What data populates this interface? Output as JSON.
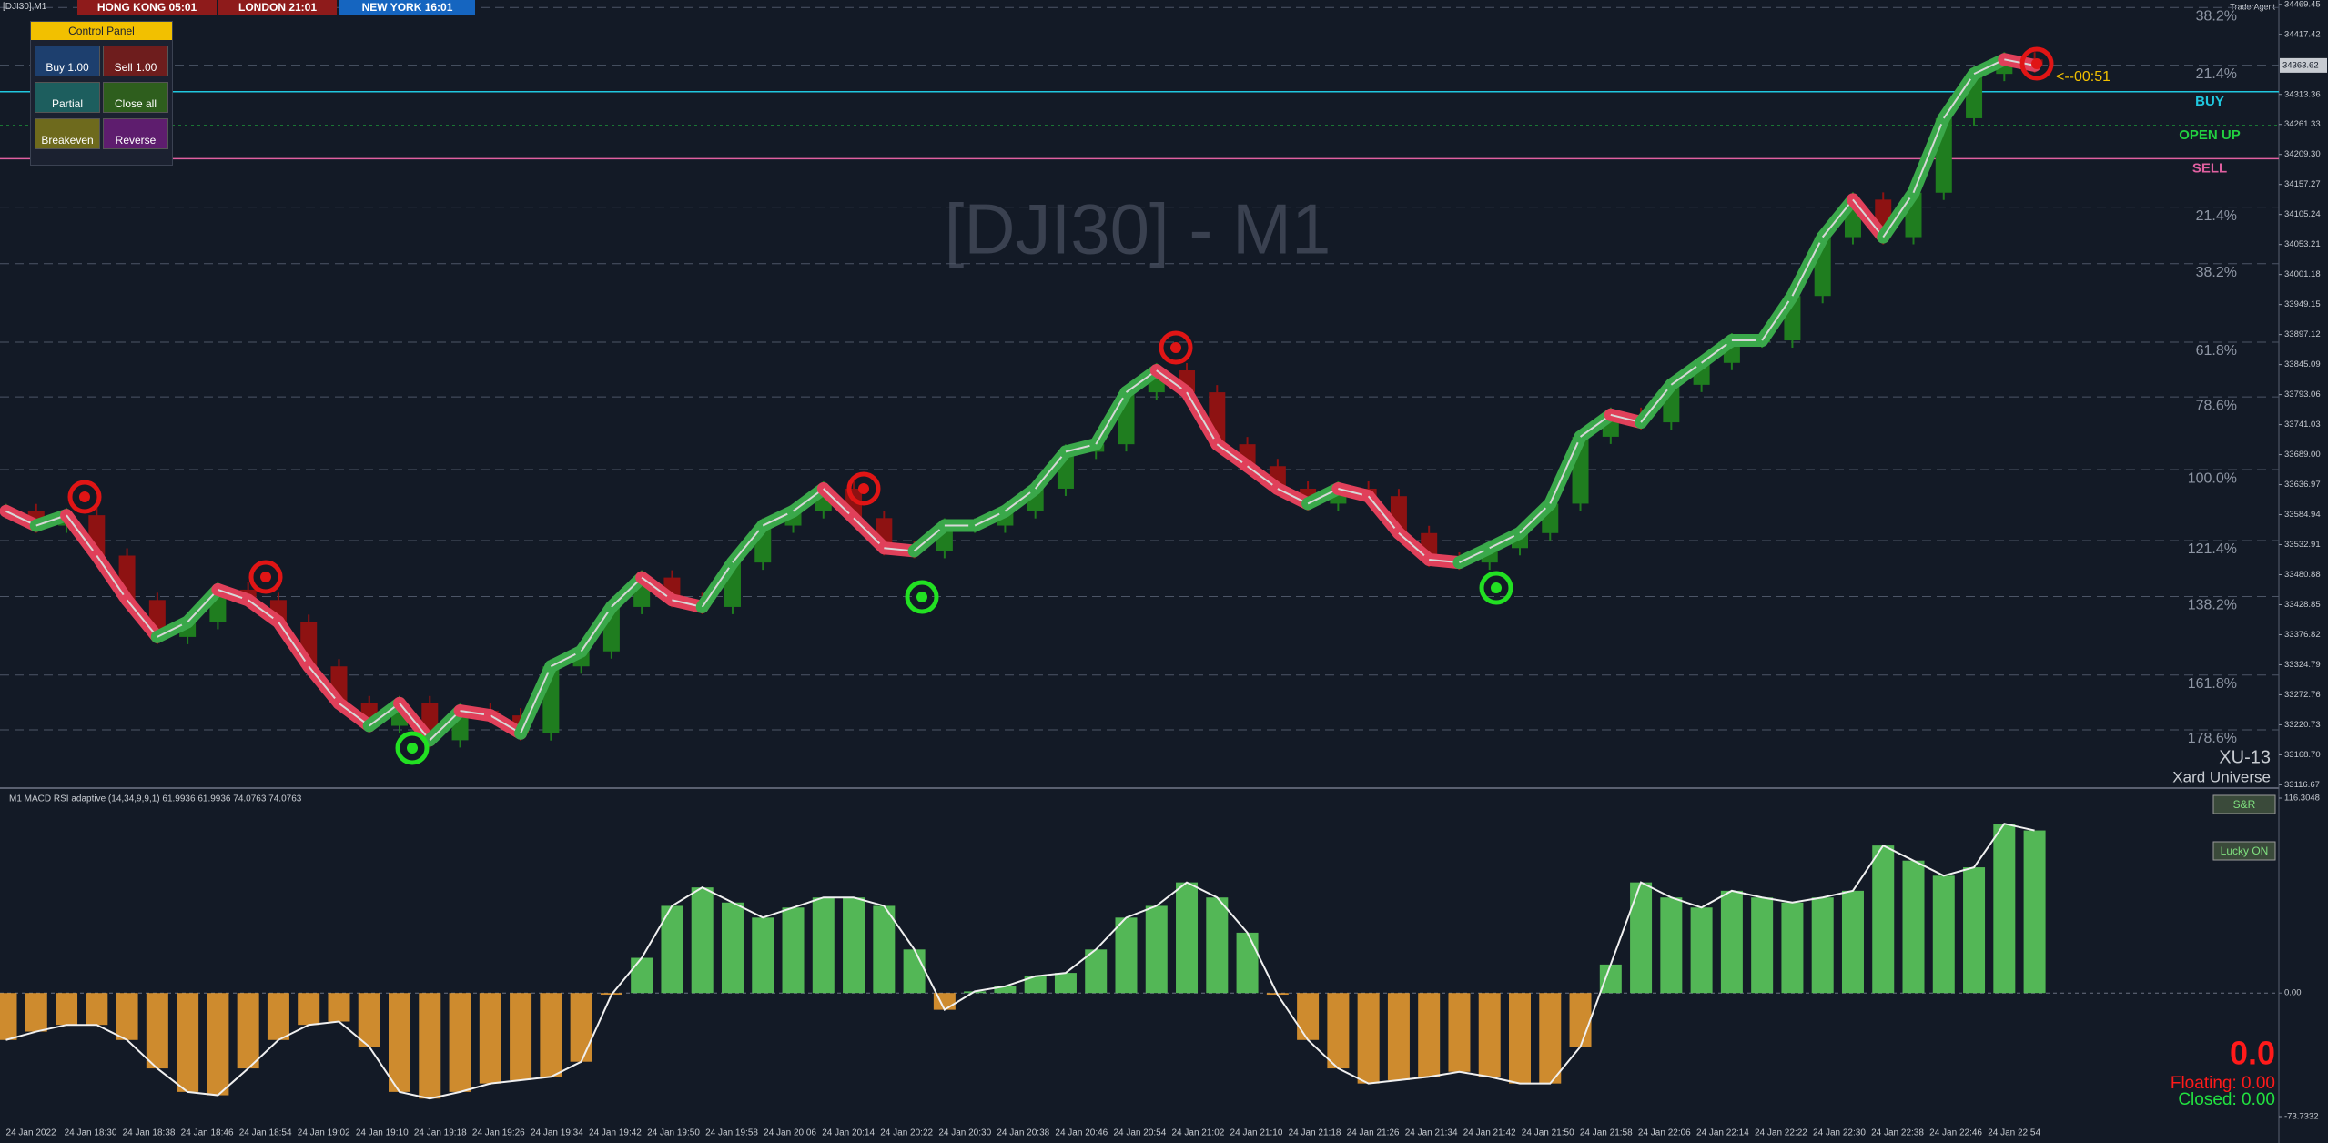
{
  "top_bar": {
    "symbol": "[DJI30],M1",
    "clocks": [
      "HONG KONG 05:01",
      "LONDON 21:01",
      "NEW YORK 16:01"
    ],
    "broker": "TraderAgent"
  },
  "control_panel": {
    "title": "Control Panel",
    "buttons": [
      "Buy 1.00",
      "Sell 1.00",
      "Partial",
      "Close all",
      "Breakeven",
      "Reverse"
    ]
  },
  "price_chart": {
    "type": "candlestick",
    "watermark": "[DJI30] - M1",
    "values": [
      33591,
      33566,
      33584,
      33514,
      33437,
      33373,
      33399,
      33455,
      33437,
      33399,
      33322,
      33258,
      33219,
      33258,
      33194,
      33245,
      33237,
      33206,
      33322,
      33348,
      33425,
      33476,
      33437,
      33425,
      33502,
      33566,
      33591,
      33630,
      33579,
      33527,
      33522,
      33566,
      33566,
      33591,
      33630,
      33694,
      33707,
      33797,
      33835,
      33797,
      33707,
      33669,
      33630,
      33604,
      33630,
      33617,
      33553,
      33507,
      33502,
      33527,
      33553,
      33604,
      33720,
      33758,
      33745,
      33810,
      33848,
      33887,
      33887,
      33964,
      34066,
      34131,
      34066,
      34143,
      34272,
      34349,
      34374,
      34363.62
    ],
    "up_color": "#1f7d1f",
    "down_color": "#8e1212",
    "ylim": [
      33111,
      34477
    ],
    "yticks": [
      34469.45,
      34417.42,
      34313.36,
      34261.33,
      {
        "value": 34209.3,
        "label": "34209.30"
      },
      34157.27,
      34105.24,
      34053.21,
      34001.18,
      33949.15,
      33897.12,
      33845.09,
      33793.06,
      33741.03,
      {
        "value": 33689,
        "label": "33689.00"
      },
      33636.97,
      33584.94,
      33532.91,
      33480.88,
      33428.85,
      33376.82,
      33324.79,
      33272.76,
      33220.73,
      {
        "value": 33168.7,
        "label": "33168.70"
      },
      33116.67
    ],
    "current_price": 34363.62,
    "countdown": "<--00:51",
    "levels": [
      {
        "label": "BUY",
        "value": 34318,
        "color": "#20c8e0"
      },
      {
        "label": "OPEN UP",
        "value": 34259,
        "color": "#22d040"
      },
      {
        "label": "SELL",
        "value": 34202,
        "color": "#e060a0"
      }
    ],
    "fib_levels": [
      {
        "label": "38.2%",
        "value": 34464
      },
      {
        "label": "21.4%",
        "value": 34364
      },
      {
        "label": "21.4%",
        "value": 34118
      },
      {
        "label": "38.2%",
        "value": 34020
      },
      {
        "label": "61.8%",
        "value": 33884
      },
      {
        "label": "78.6%",
        "value": 33789
      },
      {
        "label": "100.0%",
        "value": 33663
      },
      {
        "label": "121.4%",
        "value": 33540
      },
      {
        "label": "138.2%",
        "value": 33443
      },
      {
        "label": "161.8%",
        "value": 33307
      },
      {
        "label": "178.6%",
        "value": 33212
      }
    ],
    "brand": [
      "XU-13",
      "Xard Universe"
    ]
  },
  "indicator": {
    "title": "M1 MACD RSI adaptive (14,34,9,9,1) 61.9936 61.9936 74.0763 74.0763",
    "values": [
      -28,
      -23,
      -19,
      -19,
      -28,
      -45,
      -59,
      -61,
      -45,
      -28,
      -19,
      -17,
      -32,
      -59,
      -63,
      -59,
      -54,
      -52,
      -50,
      -41,
      -1,
      21,
      52,
      63,
      54,
      45,
      51,
      57,
      57,
      52,
      26,
      -10,
      1,
      4,
      10,
      12,
      26,
      45,
      52,
      66,
      57,
      36,
      -1,
      -28,
      -45,
      -54,
      -52,
      -50,
      -47,
      -50,
      -54,
      -54,
      -32,
      17,
      66,
      57,
      51,
      61,
      57,
      54,
      57,
      61,
      88,
      79,
      70,
      75,
      101,
      97
    ],
    "up_color": "#5fd35f",
    "down_color": "#f0a030",
    "ylim": [
      -73.7332,
      116.3048
    ],
    "yticks": [
      116.3048,
      {
        "value": 0,
        "label": "0.00"
      },
      -73.7332
    ],
    "buttons": [
      "S&R",
      "Lucky ON"
    ],
    "profit": "0.0",
    "floating": "Floating: 0.00",
    "closed": "Closed: 0.00"
  },
  "time_axis": [
    "24 Jan 2022",
    "24 Jan 18:30",
    "24 Jan 18:38",
    "24 Jan 18:46",
    "24 Jan 18:54",
    "24 Jan 19:02",
    "24 Jan 19:10",
    "24 Jan 19:18",
    "24 Jan 19:26",
    "24 Jan 19:34",
    "24 Jan 19:42",
    "24 Jan 19:50",
    "24 Jan 19:58",
    "24 Jan 20:06",
    "24 Jan 20:14",
    "24 Jan 20:22",
    "24 Jan 20:30",
    "24 Jan 20:38",
    "24 Jan 20:46",
    "24 Jan 20:54",
    "24 Jan 21:02",
    "24 Jan 21:10",
    "24 Jan 21:18",
    "24 Jan 21:26",
    "24 Jan 21:34",
    "24 Jan 21:42",
    "24 Jan 21:50",
    "24 Jan 21:58",
    "24 Jan 22:06",
    "24 Jan 22:14",
    "24 Jan 22:22",
    "24 Jan 22:30",
    "24 Jan 22:38",
    "24 Jan 22:46",
    "24 Jan 22:54"
  ]
}
